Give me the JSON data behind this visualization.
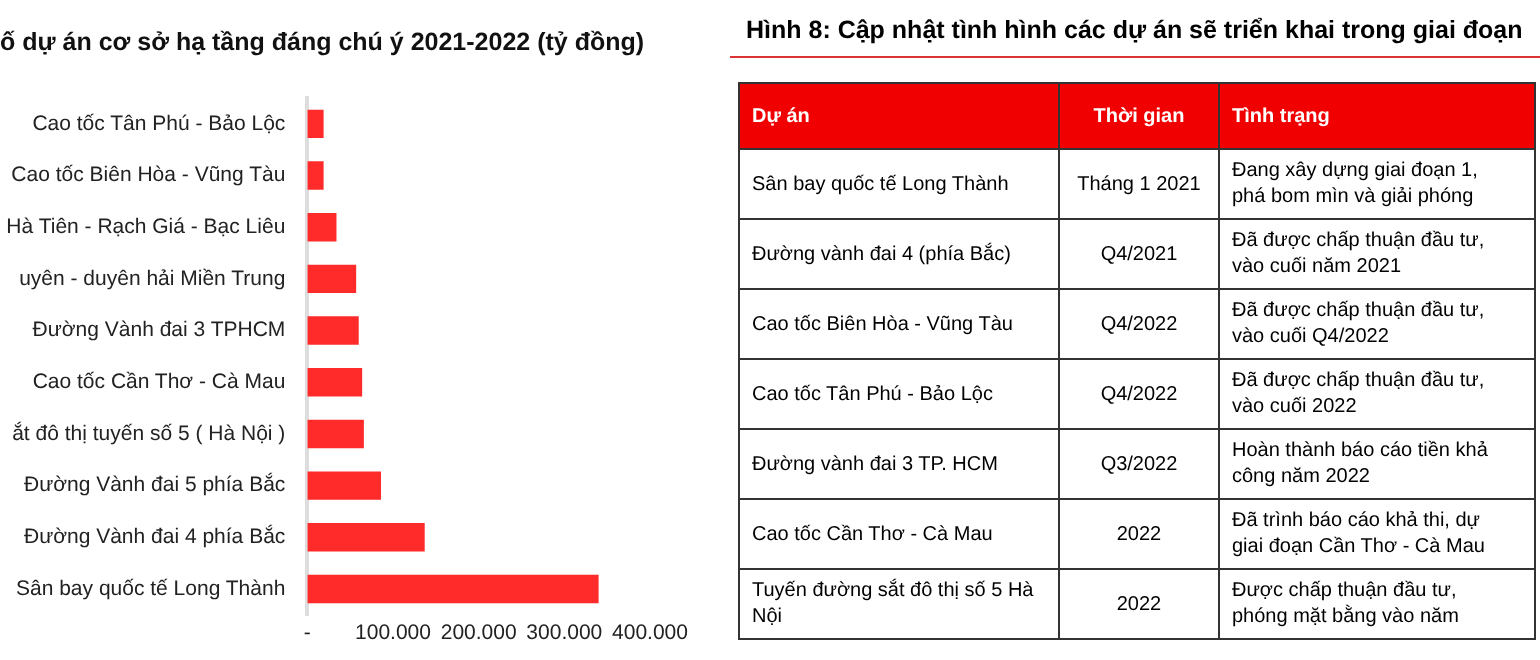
{
  "chart_data": [
    {
      "type": "bar",
      "orientation": "horizontal",
      "title": "ố dự án cơ sở hạ tầng đáng chú ý 2021-2022 (tỷ đồng)",
      "categories": [
        "Cao tốc Tân Phú - Bảo Lộc",
        "Cao tốc Biên Hòa - Vũng Tàu",
        "Hà Tiên - Rạch Giá - Bạc Liêu",
        "uyên - duyên hải Miền Trung",
        "Đường Vành đai 3 TPHCM",
        "Cao tốc Cần Thơ - Cà Mau",
        "ắt đô thị tuyến số 5 ( Hà Nội )",
        "Đường Vành đai 5 phía Bắc",
        "Đường Vành đai 4 phía Bắc",
        "Sân bay quốc tế Long Thành"
      ],
      "values": [
        19000,
        19000,
        34000,
        57000,
        60000,
        64000,
        66000,
        86000,
        137000,
        340000
      ],
      "color": "#ff2b2b",
      "xlim": [
        0,
        400000
      ],
      "xticks": [
        {
          "value": 0,
          "label": "-"
        },
        {
          "value": 100000,
          "label": "100.000"
        },
        {
          "value": 200000,
          "label": "200.000"
        },
        {
          "value": 300000,
          "label": "300.000"
        },
        {
          "value": 400000,
          "label": "400.000"
        }
      ],
      "grid": false,
      "legend": false
    },
    {
      "type": "other",
      "title": "Hình 8: Cập nhật tình hình các dự án sẽ triển khai trong giai đoạn",
      "categories": [
        "Dự án",
        "Thời gian",
        "Tình trạng"
      ],
      "annotations": [
        "Sân bay quốc tế Long Thành",
        "Tháng 1 2021",
        "Đang xây dựng giai đoạn 1,\nphá bom mìn và giải phóng",
        "Đường vành đai 4 (phía Bắc)",
        "Q4/2021",
        "Đã được chấp thuận đầu tư,\nvào cuối năm 2021",
        "Cao tốc Biên Hòa - Vũng Tàu",
        "Q4/2022",
        "Đã được chấp thuận đầu tư,\nvào cuối Q4/2022",
        "Cao tốc Tân Phú - Bảo Lộc",
        "Q4/2022",
        "Đã được chấp thuận đầu tư,\nvào cuối 2022",
        "Đường vành đai 3 TP.  HCM",
        "Q3/2022",
        "Hoàn thành báo cáo tiền khả\ncông năm 2022",
        "Cao tốc Cần Thơ - Cà Mau",
        "2022",
        "Đã trình báo cáo khả thi, dự\ngiai đoạn Cần Thơ - Cà Mau",
        "Tuyến đường sắt đô thị số 5 Hà Nội",
        "2022",
        "Được chấp thuận đầu tư,\nphóng mặt bằng vào năm"
      ]
    }
  ]
}
